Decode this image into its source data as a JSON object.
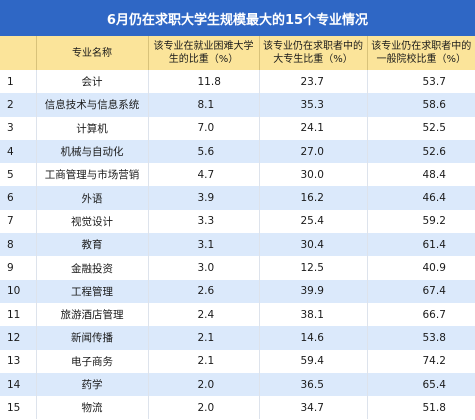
{
  "title": "6月仍在求职大学生规模最大的15个专业情况",
  "headers": [
    "",
    "专业名称",
    "该专业在就业困难大学生的比重（%）",
    "该专业仍在求职者中的大专生比重（%）",
    "该专业仍在求职者中的一般院校比重（%）"
  ],
  "rows": [
    {
      "no": "1",
      "name": "会计",
      "a": "11.8",
      "b": "23.7",
      "c": "53.7"
    },
    {
      "no": "2",
      "name": "信息技术与信息系统",
      "a": "8.1",
      "b": "35.3",
      "c": "58.6"
    },
    {
      "no": "3",
      "name": "计算机",
      "a": "7.0",
      "b": "24.1",
      "c": "52.5"
    },
    {
      "no": "4",
      "name": "机械与自动化",
      "a": "5.6",
      "b": "27.0",
      "c": "52.6"
    },
    {
      "no": "5",
      "name": "工商管理与市场营销",
      "a": "4.7",
      "b": "30.0",
      "c": "48.4"
    },
    {
      "no": "6",
      "name": "外语",
      "a": "3.9",
      "b": "16.2",
      "c": "46.4"
    },
    {
      "no": "7",
      "name": "视觉设计",
      "a": "3.3",
      "b": "25.4",
      "c": "59.2"
    },
    {
      "no": "8",
      "name": "教育",
      "a": "3.1",
      "b": "30.4",
      "c": "61.4"
    },
    {
      "no": "9",
      "name": "金融投资",
      "a": "3.0",
      "b": "12.5",
      "c": "40.9"
    },
    {
      "no": "10",
      "name": "工程管理",
      "a": "2.6",
      "b": "39.9",
      "c": "67.4"
    },
    {
      "no": "11",
      "name": "旅游酒店管理",
      "a": "2.4",
      "b": "38.1",
      "c": "66.7"
    },
    {
      "no": "12",
      "name": "新闻传播",
      "a": "2.1",
      "b": "14.6",
      "c": "53.8"
    },
    {
      "no": "13",
      "name": "电子商务",
      "a": "2.1",
      "b": "59.4",
      "c": "74.2"
    },
    {
      "no": "14",
      "name": "药学",
      "a": "2.0",
      "b": "36.5",
      "c": "65.4"
    },
    {
      "no": "15",
      "name": "物流",
      "a": "2.0",
      "b": "34.7",
      "c": "51.8"
    }
  ],
  "colors": {
    "title_bg": "#2f67c5",
    "header_bg": "#fbe49a",
    "stripe": "#dbe9fb"
  }
}
